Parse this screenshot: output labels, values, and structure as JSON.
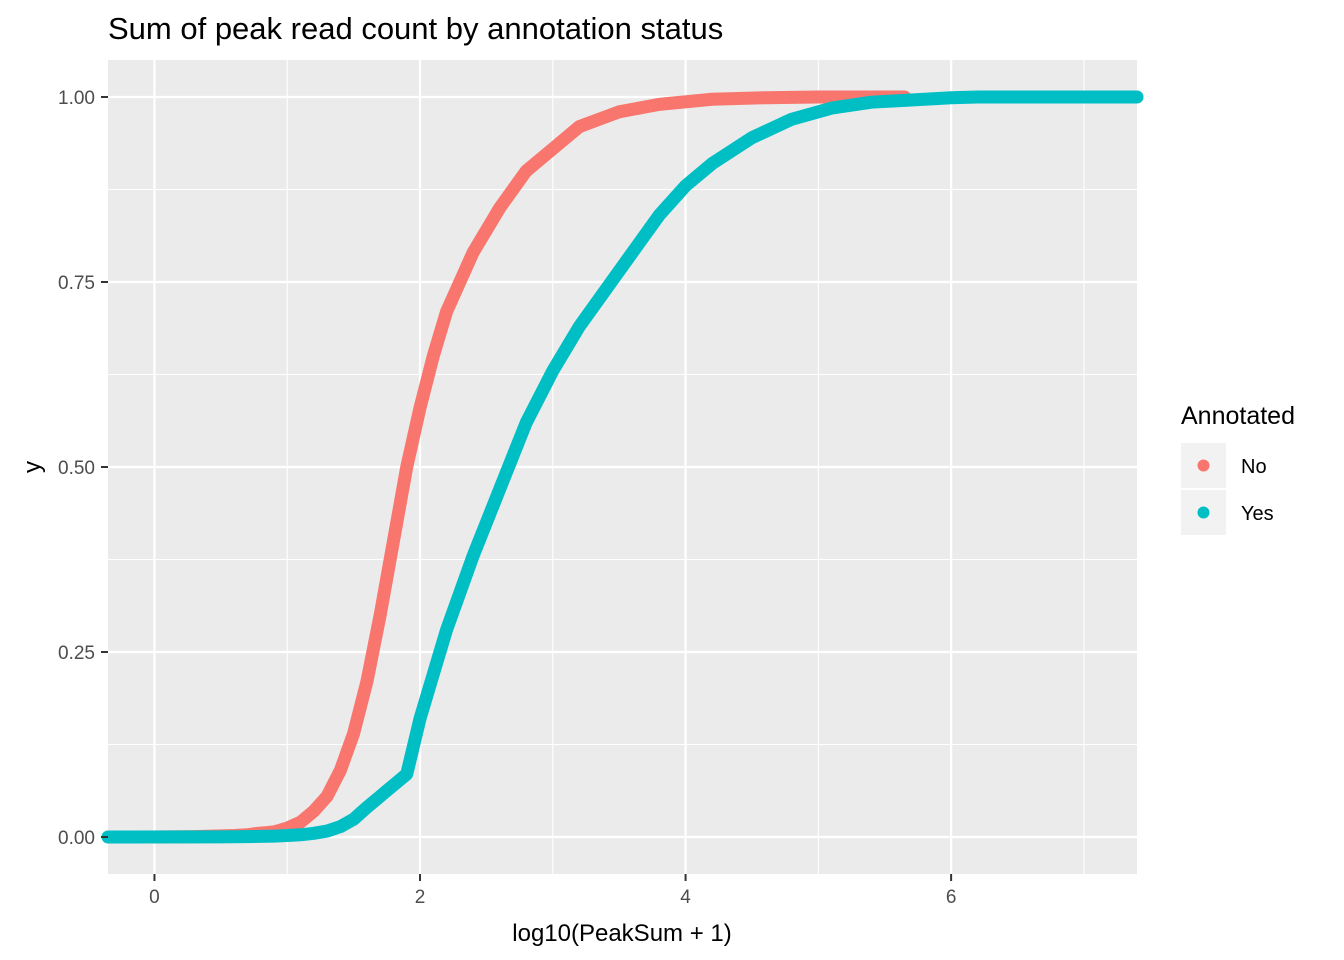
{
  "chart_data": {
    "type": "scatter",
    "title": "Sum of peak read count by annotation status",
    "xlabel": "log10(PeakSum + 1)",
    "ylabel": "y",
    "xlim": [
      -0.35,
      7.4
    ],
    "ylim": [
      -0.05,
      1.05
    ],
    "x_ticks": [
      0,
      2,
      4,
      6
    ],
    "x_tick_labels": [
      "0",
      "2",
      "4",
      "6"
    ],
    "y_ticks": [
      0,
      0.25,
      0.5,
      0.75,
      1
    ],
    "y_tick_labels": [
      "0.00",
      "0.25",
      "0.50",
      "0.75",
      "1.00"
    ],
    "grid": true,
    "legend": {
      "title": "Annotated",
      "position": "right",
      "entries": [
        {
          "label": "No",
          "color": "#F8766D"
        },
        {
          "label": "Yes",
          "color": "#00BFC4"
        }
      ]
    },
    "series": [
      {
        "name": "No",
        "color": "#F8766D",
        "points": [
          [
            0,
            0.0
          ],
          [
            0.301,
            0.0005
          ],
          [
            0.602,
            0.002
          ],
          [
            0.699,
            0.003
          ],
          [
            0.778,
            0.005
          ],
          [
            0.845,
            0.006
          ],
          [
            0.903,
            0.007
          ],
          [
            1.0,
            0.012
          ],
          [
            1.1,
            0.02
          ],
          [
            1.2,
            0.035
          ],
          [
            1.3,
            0.055
          ],
          [
            1.4,
            0.09
          ],
          [
            1.5,
            0.14
          ],
          [
            1.6,
            0.21
          ],
          [
            1.7,
            0.3
          ],
          [
            1.8,
            0.4
          ],
          [
            1.9,
            0.5
          ],
          [
            2.0,
            0.58
          ],
          [
            2.1,
            0.65
          ],
          [
            2.2,
            0.71
          ],
          [
            2.4,
            0.79
          ],
          [
            2.6,
            0.85
          ],
          [
            2.8,
            0.9
          ],
          [
            3.0,
            0.93
          ],
          [
            3.2,
            0.96
          ],
          [
            3.5,
            0.98
          ],
          [
            3.8,
            0.99
          ],
          [
            4.2,
            0.997
          ],
          [
            4.6,
            0.999
          ],
          [
            5.0,
            1.0
          ],
          [
            5.25,
            1.0
          ],
          [
            5.4,
            1.0
          ],
          [
            5.55,
            1.0
          ],
          [
            5.65,
            1.0
          ]
        ]
      },
      {
        "name": "Yes",
        "color": "#00BFC4",
        "points": [
          [
            -0.35,
            0.0
          ],
          [
            0.477,
            0.0002
          ],
          [
            0.602,
            0.0004
          ],
          [
            0.778,
            0.0008
          ],
          [
            0.9,
            0.0012
          ],
          [
            1.0,
            0.002
          ],
          [
            1.1,
            0.003
          ],
          [
            1.2,
            0.005
          ],
          [
            1.3,
            0.008
          ],
          [
            1.4,
            0.014
          ],
          [
            1.5,
            0.024
          ],
          [
            1.6,
            0.04
          ],
          [
            1.7,
            0.055
          ],
          [
            1.8,
            0.07
          ],
          [
            1.9,
            0.085
          ],
          [
            2.0,
            0.16
          ],
          [
            2.1,
            0.22
          ],
          [
            2.2,
            0.28
          ],
          [
            2.4,
            0.38
          ],
          [
            2.6,
            0.47
          ],
          [
            2.8,
            0.56
          ],
          [
            3.0,
            0.63
          ],
          [
            3.2,
            0.69
          ],
          [
            3.4,
            0.74
          ],
          [
            3.6,
            0.79
          ],
          [
            3.8,
            0.84
          ],
          [
            4.0,
            0.88
          ],
          [
            4.2,
            0.91
          ],
          [
            4.5,
            0.945
          ],
          [
            4.8,
            0.97
          ],
          [
            5.1,
            0.985
          ],
          [
            5.4,
            0.993
          ],
          [
            5.8,
            0.997
          ],
          [
            6.0,
            0.999
          ],
          [
            6.2,
            1.0
          ],
          [
            6.35,
            1.0
          ],
          [
            6.45,
            1.0
          ],
          [
            6.55,
            1.0
          ],
          [
            6.62,
            1.0
          ],
          [
            6.7,
            1.0
          ],
          [
            7.05,
            1.0
          ],
          [
            7.4,
            1.0
          ]
        ]
      }
    ]
  }
}
